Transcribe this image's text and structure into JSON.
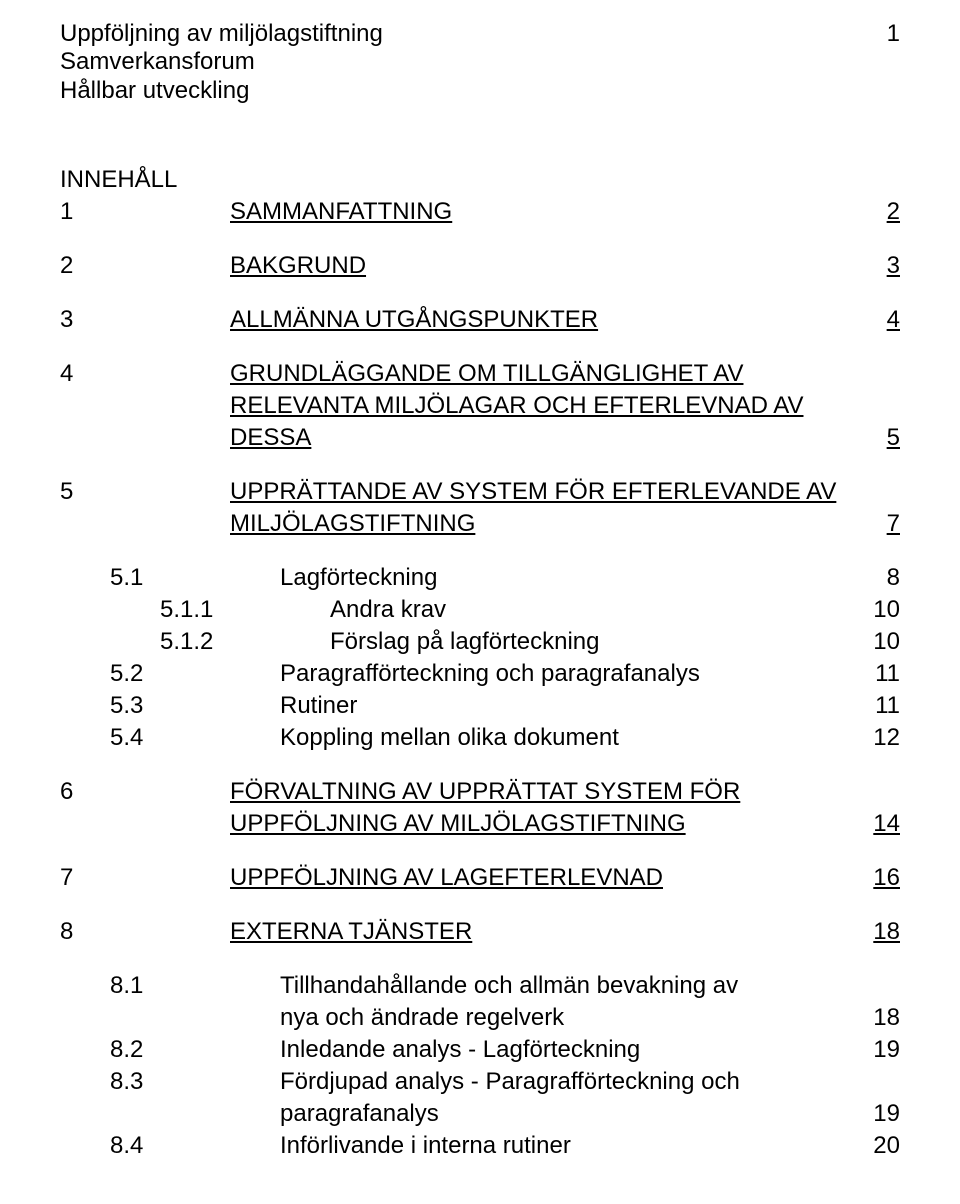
{
  "header": {
    "line1": "Uppföljning av miljölagstiftning",
    "line2": "Samverkansforum",
    "line3": "Hållbar utveckling",
    "pageNumber": "1"
  },
  "toc": {
    "heading": "INNEHÅLL",
    "entries": [
      {
        "num": "1",
        "title": "SAMMANFATTNING",
        "page": "2",
        "underline": true,
        "gap": false,
        "indent": 0
      },
      {
        "num": "2",
        "title": "BAKGRUND",
        "page": "3",
        "underline": true,
        "gap": true,
        "indent": 0
      },
      {
        "num": "3",
        "title": "ALLMÄNNA UTGÅNGSPUNKTER",
        "page": "4",
        "underline": true,
        "gap": true,
        "indent": 0
      },
      {
        "num": "4",
        "title": "GRUNDLÄGGANDE OM TILLGÄNGLIGHET AV RELEVANTA MILJÖLAGAR OCH EFTERLEVNAD AV DESSA",
        "page": "5",
        "underline": true,
        "gap": true,
        "indent": 0,
        "multiline": true,
        "lines": [
          "GRUNDLÄGGANDE OM TILLGÄNGLIGHET AV",
          "RELEVANTA MILJÖLAGAR OCH EFTERLEVNAD AV",
          "DESSA"
        ]
      },
      {
        "num": "5",
        "title": "UPPRÄTTANDE AV SYSTEM FÖR EFTERLEVANDE AV MILJÖLAGSTIFTNING",
        "page": "7",
        "underline": true,
        "gap": true,
        "indent": 0,
        "multiline": true,
        "lines": [
          "UPPRÄTTANDE AV SYSTEM FÖR EFTERLEVANDE AV",
          "MILJÖLAGSTIFTNING"
        ]
      },
      {
        "num": "5.1",
        "title": "Lagförteckning",
        "page": "8",
        "underline": false,
        "gap": true,
        "indent": 1
      },
      {
        "num": "5.1.1",
        "title": "Andra krav",
        "page": "10",
        "underline": false,
        "gap": false,
        "indent": 2
      },
      {
        "num": "5.1.2",
        "title": "Förslag på lagförteckning",
        "page": "10",
        "underline": false,
        "gap": false,
        "indent": 2
      },
      {
        "num": "5.2",
        "title": "Paragrafförteckning och paragrafanalys",
        "page": "11",
        "underline": false,
        "gap": false,
        "indent": 1
      },
      {
        "num": "5.3",
        "title": "Rutiner",
        "page": "11",
        "underline": false,
        "gap": false,
        "indent": 1
      },
      {
        "num": "5.4",
        "title": "Koppling mellan olika dokument",
        "page": "12",
        "underline": false,
        "gap": false,
        "indent": 1
      },
      {
        "num": "6",
        "title": "FÖRVALTNING AV UPPRÄTTAT SYSTEM FÖR UPPFÖLJNING AV MILJÖLAGSTIFTNING",
        "page": "14",
        "underline": true,
        "gap": true,
        "indent": 0,
        "multiline": true,
        "lines": [
          "FÖRVALTNING AV UPPRÄTTAT SYSTEM FÖR",
          "UPPFÖLJNING AV MILJÖLAGSTIFTNING"
        ]
      },
      {
        "num": "7",
        "title": "UPPFÖLJNING AV LAGEFTERLEVNAD",
        "page": "16",
        "underline": true,
        "gap": true,
        "indent": 0
      },
      {
        "num": "8",
        "title": "EXTERNA TJÄNSTER",
        "page": "18",
        "underline": true,
        "gap": true,
        "indent": 0
      },
      {
        "num": "8.1",
        "title": "Tillhandahållande och allmän bevakning av nya och ändrade regelverk",
        "page": "18",
        "underline": false,
        "gap": true,
        "indent": 1,
        "multiline": true,
        "lines": [
          "Tillhandahållande och allmän bevakning av",
          "nya och ändrade regelverk"
        ]
      },
      {
        "num": "8.2",
        "title": "Inledande analys - Lagförteckning",
        "page": "19",
        "underline": false,
        "gap": false,
        "indent": 1
      },
      {
        "num": "8.3",
        "title": "Fördjupad analys - Paragrafförteckning och paragrafanalys",
        "page": "19",
        "underline": false,
        "gap": false,
        "indent": 1,
        "multiline": true,
        "lines": [
          "Fördjupad analys - Paragrafförteckning och",
          "paragrafanalys"
        ]
      },
      {
        "num": "8.4",
        "title": "Införlivande i interna rutiner",
        "page": "20",
        "underline": false,
        "gap": false,
        "indent": 1
      }
    ]
  }
}
